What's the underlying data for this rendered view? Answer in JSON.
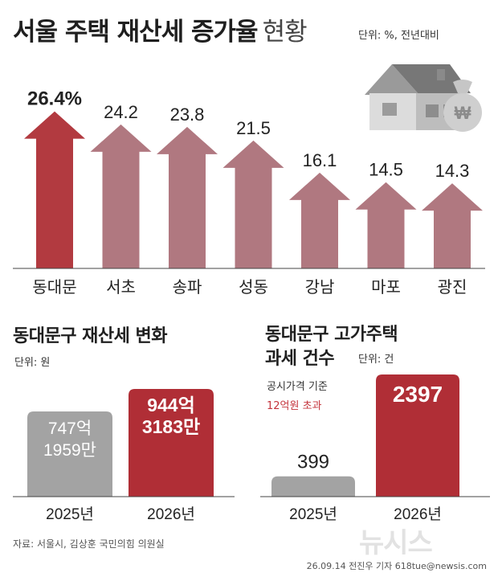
{
  "header": {
    "title_main": "서울 주택 재산세 증가율",
    "title_sub": "현황",
    "unit": "단위: %, 전년대비"
  },
  "section2": {
    "title": "동대문구 재산세 변화",
    "unit": "단위: 원"
  },
  "section3": {
    "title_line1": "동대문구 고가주택",
    "title_line2": "과세 건수",
    "unit": "단위: 건",
    "note1": "공시가격 기준",
    "note2": "12억원 초과"
  },
  "footer": {
    "source": "자료: 서울시, 김상훈 국민의힘 의원실",
    "credit": "26.09.14 전진우 기자 618tue@newsis.com",
    "watermark": "뉴시스"
  },
  "colors": {
    "highlight": "#b23a40",
    "bar": "#b07880",
    "gray": "#a3a3a3",
    "red": "#b02e36",
    "note_red": "#c4343c"
  },
  "chart_data": [
    {
      "type": "bar",
      "title": "서울 주택 재산세 증가율 현황",
      "categories": [
        "동대문",
        "서초",
        "송파",
        "성동",
        "강남",
        "마포",
        "광진"
      ],
      "values": [
        26.4,
        24.2,
        23.8,
        21.5,
        16.1,
        14.5,
        14.3
      ],
      "value_labels": [
        "26.4%",
        "24.2",
        "23.8",
        "21.5",
        "16.1",
        "14.5",
        "14.3"
      ],
      "ylabel": "단위: %, 전년대비",
      "ylim": [
        0,
        30
      ],
      "grid": false
    },
    {
      "type": "bar",
      "title": "동대문구 재산세 변화",
      "categories": [
        "2025년",
        "2026년"
      ],
      "values": [
        74719590000,
        94431830000
      ],
      "value_labels": [
        [
          "747억",
          "1959만"
        ],
        [
          "944억",
          "3183만"
        ]
      ],
      "ylabel": "단위: 원",
      "grid": false
    },
    {
      "type": "bar",
      "title": "동대문구 고가주택 과세 건수",
      "categories": [
        "2025년",
        "2026년"
      ],
      "values": [
        399,
        2397
      ],
      "value_labels": [
        "399",
        "2397"
      ],
      "ylabel": "단위: 건",
      "grid": false
    }
  ]
}
